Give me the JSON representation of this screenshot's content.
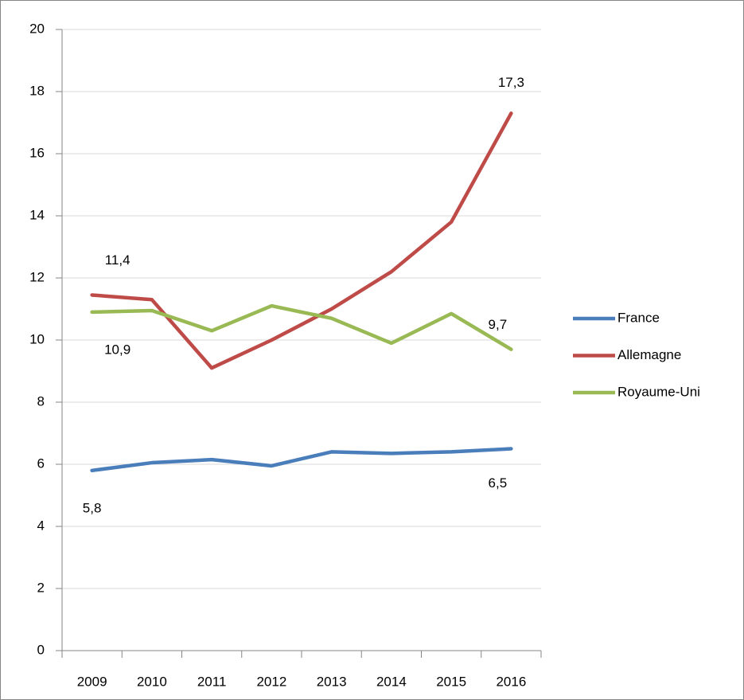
{
  "chart_data": {
    "type": "line",
    "categories": [
      "2009",
      "2010",
      "2011",
      "2012",
      "2013",
      "2014",
      "2015",
      "2016"
    ],
    "series": [
      {
        "name": "France",
        "color": "#4a7ebb",
        "values": [
          5.8,
          6.05,
          6.15,
          5.95,
          6.4,
          6.35,
          6.4,
          6.5
        ],
        "value_labels": [
          "5,8",
          null,
          null,
          null,
          null,
          null,
          null,
          "6,5"
        ]
      },
      {
        "name": "Allemagne",
        "color": "#be4b48",
        "values": [
          11.45,
          11.3,
          9.1,
          10.0,
          11.0,
          12.2,
          13.8,
          17.3
        ],
        "value_labels": [
          "11,4",
          null,
          null,
          null,
          null,
          null,
          null,
          "17,3"
        ]
      },
      {
        "name": "Royaume-Uni",
        "color": "#98b954",
        "values": [
          10.9,
          10.95,
          10.3,
          11.1,
          10.7,
          9.9,
          10.85,
          9.7
        ],
        "value_labels": [
          "10,9",
          null,
          null,
          null,
          null,
          null,
          null,
          "9,7"
        ]
      }
    ],
    "ylim": [
      0,
      20
    ],
    "yticks": [
      0,
      2,
      4,
      6,
      8,
      10,
      12,
      14,
      16,
      18,
      20
    ],
    "grid": true,
    "legend": "right"
  }
}
